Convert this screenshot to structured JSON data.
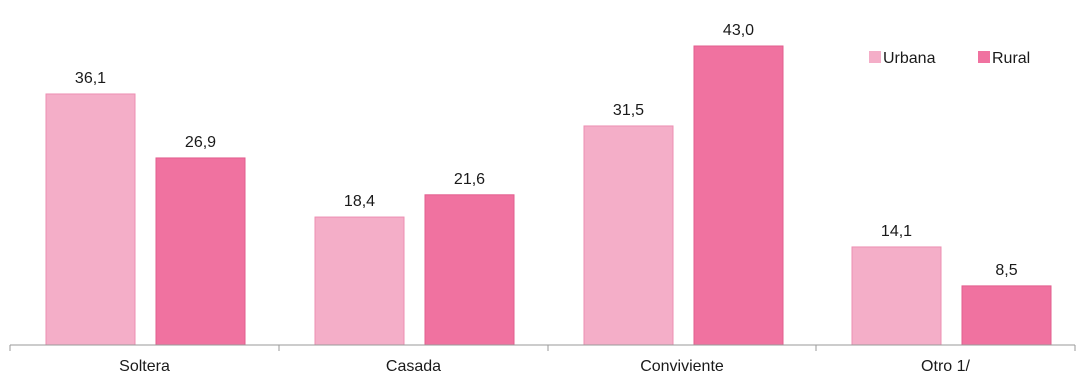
{
  "chart_data": {
    "type": "bar",
    "categories": [
      "Soltera",
      "Casada",
      "Conviviente",
      "Otro 1/"
    ],
    "series": [
      {
        "name": "Urbana",
        "values": [
          36.1,
          18.4,
          31.5,
          14.1
        ],
        "labels": [
          "36,1",
          "18,4",
          "31,5",
          "14,1"
        ]
      },
      {
        "name": "Rural",
        "values": [
          26.9,
          21.6,
          43.0,
          8.5
        ],
        "labels": [
          "26,9",
          "21,6",
          "43,0",
          "8,5"
        ]
      }
    ],
    "ylim": [
      0,
      45
    ],
    "grid": false,
    "legend_position": "top-right",
    "colors": {
      "Urbana": "#f4aec8",
      "Rural": "#f072a0"
    },
    "xlabel": "",
    "ylabel": "",
    "title": ""
  }
}
